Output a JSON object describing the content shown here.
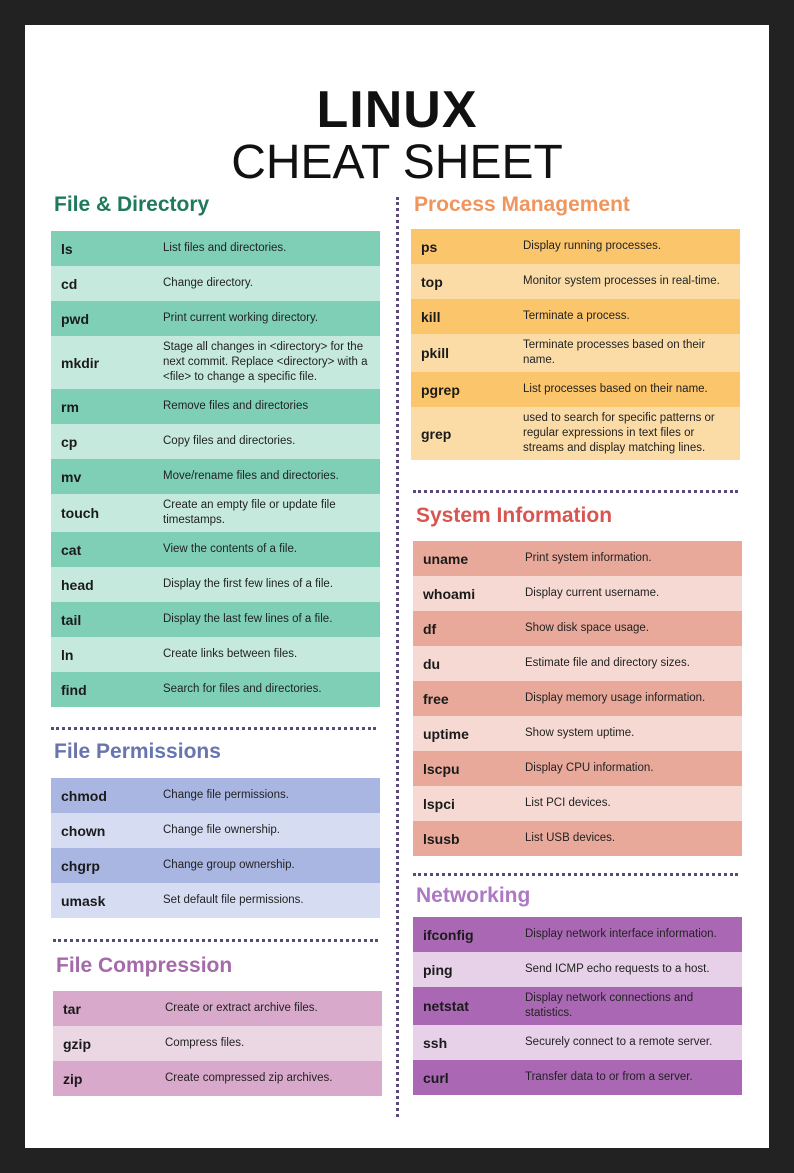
{
  "header": {
    "title": "LINUX",
    "subtitle": "CHEAT SHEET"
  },
  "sections": [
    {
      "title": "File & Directory",
      "rows": [
        {
          "command": "ls",
          "description": "List files and directories."
        },
        {
          "command": "cd",
          "description": "Change directory."
        },
        {
          "command": "pwd",
          "description": "Print current working directory."
        },
        {
          "command": "mkdir",
          "description": "Stage all changes in <directory> for the next commit. Replace <directory> with a <file> to change a specific file."
        },
        {
          "command": "rm",
          "description": "Remove files and directories"
        },
        {
          "command": "cp",
          "description": "Copy files and directories."
        },
        {
          "command": "mv",
          "description": "Move/rename files and directories."
        },
        {
          "command": "touch",
          "description": "Create an empty file or update file timestamps."
        },
        {
          "command": "cat",
          "description": "View the contents of a file."
        },
        {
          "command": "head",
          "description": "Display the first few lines of a file."
        },
        {
          "command": "tail",
          "description": "Display the last few lines of a file."
        },
        {
          "command": "ln",
          "description": "Create links between files."
        },
        {
          "command": "find",
          "description": "Search for files and directories."
        }
      ]
    },
    {
      "title": "File Permissions",
      "rows": [
        {
          "command": "chmod",
          "description": "Change file permissions."
        },
        {
          "command": "chown",
          "description": "Change file ownership."
        },
        {
          "command": "chgrp",
          "description": "Change group ownership."
        },
        {
          "command": "umask",
          "description": "Set default file permissions."
        }
      ]
    },
    {
      "title": "File Compression",
      "rows": [
        {
          "command": "tar",
          "description": "Create or extract archive files."
        },
        {
          "command": "gzip",
          "description": "Compress files."
        },
        {
          "command": "zip",
          "description": "Create compressed zip archives."
        }
      ]
    },
    {
      "title": "Process Management",
      "rows": [
        {
          "command": "ps",
          "description": "Display running processes."
        },
        {
          "command": "top",
          "description": "Monitor system processes in real-time."
        },
        {
          "command": "kill",
          "description": "Terminate a process."
        },
        {
          "command": "pkill",
          "description": "Terminate processes based on their name."
        },
        {
          "command": "pgrep",
          "description": "List processes based on their name."
        },
        {
          "command": "grep",
          "description": "used to search for specific patterns or regular expressions in text files or streams and display matching lines."
        }
      ]
    },
    {
      "title": "System Information",
      "rows": [
        {
          "command": "uname",
          "description": "Print system information."
        },
        {
          "command": "whoami",
          "description": "Display current username."
        },
        {
          "command": "df",
          "description": "Show disk space usage."
        },
        {
          "command": "du",
          "description": "Estimate file and directory sizes."
        },
        {
          "command": "free",
          "description": "Display memory usage information."
        },
        {
          "command": "uptime",
          "description": "Show system uptime."
        },
        {
          "command": "lscpu",
          "description": "Display CPU information."
        },
        {
          "command": "lspci",
          "description": "List PCI devices."
        },
        {
          "command": "lsusb",
          "description": "List USB devices."
        }
      ]
    },
    {
      "title": "Networking",
      "rows": [
        {
          "command": "ifconfig",
          "description": "Display network interface information."
        },
        {
          "command": "ping",
          "description": "Send ICMP echo requests to a host."
        },
        {
          "command": "netstat",
          "description": "Display network connections and statistics."
        },
        {
          "command": "ssh",
          "description": "Securely connect to a remote server."
        },
        {
          "command": "curl",
          "description": "Transfer data to or from a server."
        }
      ]
    }
  ]
}
